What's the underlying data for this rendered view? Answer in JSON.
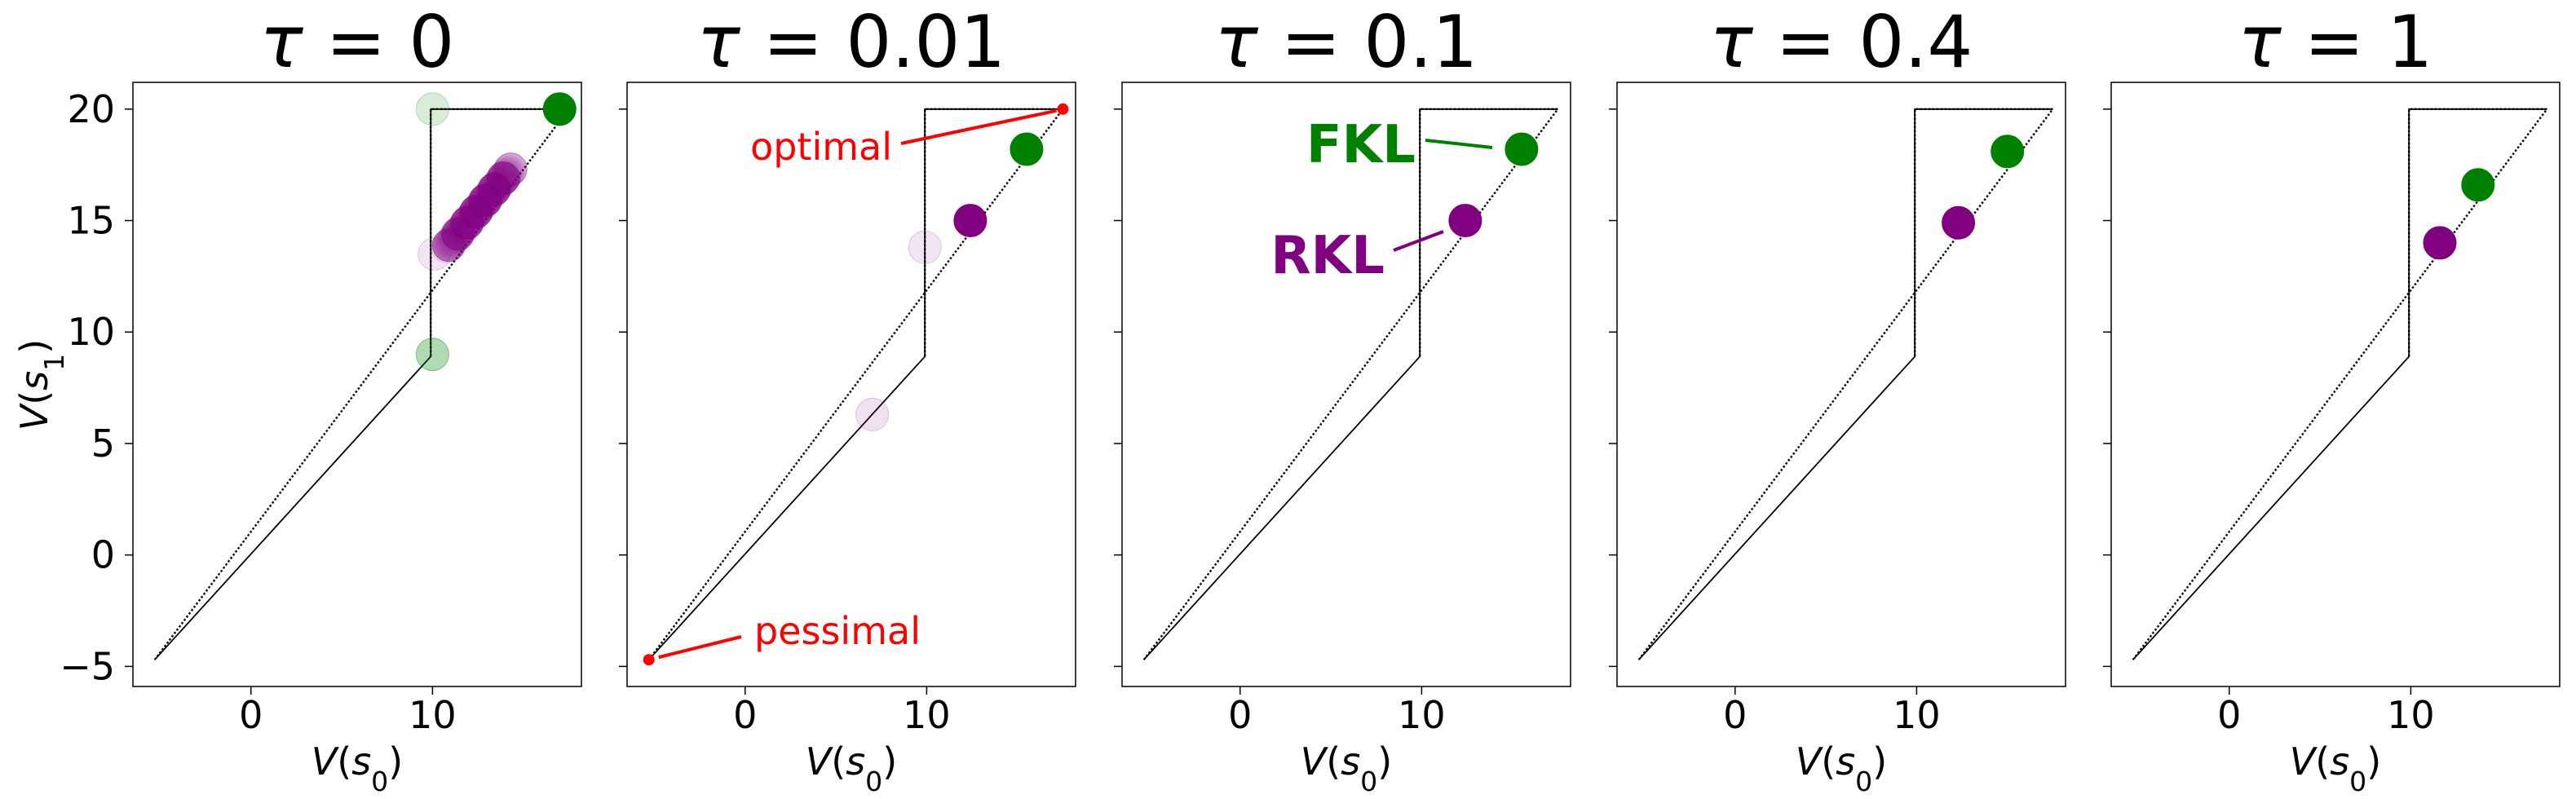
{
  "chart_data": {
    "type": "scatter",
    "xlabel": "V(s0)",
    "ylabel": "V(s1)",
    "xlim": [
      -6.5,
      18.2
    ],
    "ylim": [
      -5.9,
      21.2
    ],
    "xticks": [
      0,
      10
    ],
    "yticks": [
      -5,
      0,
      5,
      10,
      15,
      20
    ],
    "boundary": {
      "solid": [
        [
          -5.3,
          -4.7
        ],
        [
          9.9,
          8.9
        ],
        [
          9.9,
          20.0
        ],
        [
          17.5,
          20.0
        ]
      ],
      "dotted": [
        [
          -5.3,
          -4.7
        ],
        [
          17.5,
          20.0
        ],
        [
          9.9,
          20.0
        ],
        [
          9.9,
          8.9
        ]
      ]
    },
    "special_points": {
      "optimal": {
        "label": "optimal",
        "x": 17.5,
        "y": 20.0,
        "color": "#ff0000"
      },
      "pessimal": {
        "label": "pessimal",
        "x": -5.3,
        "y": -4.7,
        "color": "#ff0000"
      }
    },
    "methods": [
      {
        "name": "FKL",
        "color": "#008000"
      },
      {
        "name": "RKL",
        "color": "#800080"
      }
    ],
    "panels": [
      {
        "title": "τ = 0",
        "series": [
          {
            "name": "FKL",
            "color": "#008000",
            "points": [
              [
                17.0,
                20.0,
                1.0
              ],
              [
                10.0,
                20.0,
                0.15
              ],
              [
                10.0,
                9.0,
                0.3
              ]
            ]
          },
          {
            "name": "RKL",
            "color": "#800080",
            "points": [
              [
                10.1,
                13.5,
                0.1
              ],
              [
                10.9,
                13.9,
                0.4
              ],
              [
                11.4,
                14.4,
                0.5
              ],
              [
                11.9,
                14.9,
                0.55
              ],
              [
                12.4,
                15.4,
                0.6
              ],
              [
                12.9,
                15.9,
                0.6
              ],
              [
                13.4,
                16.4,
                0.6
              ],
              [
                13.9,
                16.9,
                0.55
              ],
              [
                14.3,
                17.3,
                0.35
              ]
            ]
          }
        ]
      },
      {
        "title": "τ = 0.01",
        "series": [
          {
            "name": "FKL",
            "color": "#008000",
            "points": [
              [
                15.5,
                18.2,
                1.0
              ]
            ]
          },
          {
            "name": "RKL",
            "color": "#800080",
            "points": [
              [
                12.4,
                15.0,
                1.0
              ],
              [
                9.9,
                13.8,
                0.1
              ],
              [
                7.0,
                6.3,
                0.12
              ]
            ]
          }
        ],
        "annotations": [
          "optimal",
          "pessimal"
        ]
      },
      {
        "title": "τ = 0.1",
        "series": [
          {
            "name": "FKL",
            "color": "#008000",
            "points": [
              [
                15.5,
                18.2,
                1.0
              ]
            ]
          },
          {
            "name": "RKL",
            "color": "#800080",
            "points": [
              [
                12.4,
                15.0,
                1.0
              ]
            ]
          }
        ],
        "annotations": [
          "FKL",
          "RKL"
        ]
      },
      {
        "title": "τ = 0.4",
        "series": [
          {
            "name": "FKL",
            "color": "#008000",
            "points": [
              [
                15.0,
                18.1,
                1.0
              ]
            ]
          },
          {
            "name": "RKL",
            "color": "#800080",
            "points": [
              [
                12.3,
                14.9,
                1.0
              ]
            ]
          }
        ]
      },
      {
        "title": "τ = 1",
        "series": [
          {
            "name": "FKL",
            "color": "#008000",
            "points": [
              [
                13.7,
                16.6,
                1.0
              ]
            ]
          },
          {
            "name": "RKL",
            "color": "#800080",
            "points": [
              [
                11.6,
                14.0,
                1.0
              ]
            ]
          }
        ]
      }
    ]
  }
}
